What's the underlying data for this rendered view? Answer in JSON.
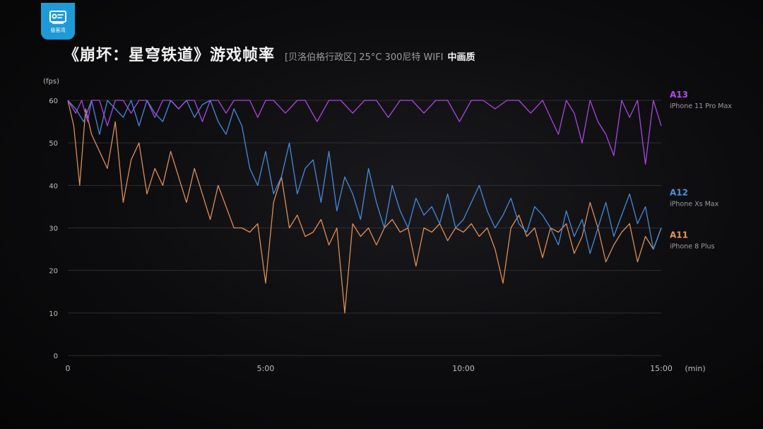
{
  "header": {
    "logo_text": "极客湾",
    "title": "《崩坏：星穹铁道》游戏帧率",
    "subtitle": "[贝洛伯格行政区] 25°C 300尼特 WIFI",
    "quality": "中画质"
  },
  "colors": {
    "a13": "#b04ae8",
    "a12": "#4a8fe0",
    "a11": "#e6935c",
    "grid": "#2e2e32",
    "axis_text": "#bdbdbd"
  },
  "chart_data": {
    "type": "line",
    "title": "《崩坏：星穹铁道》游戏帧率",
    "ylabel": "(fps)",
    "xlabel": "(min)",
    "ylim": [
      0,
      60
    ],
    "xlim": [
      0,
      15
    ],
    "yticks": [
      "0",
      "10",
      "20",
      "30",
      "40",
      "50",
      "60"
    ],
    "xticks": [
      {
        "value": 0,
        "label": "0"
      },
      {
        "value": 5,
        "label": "5:00"
      },
      {
        "value": 10,
        "label": "10:00"
      },
      {
        "value": 15,
        "label": "15:00"
      }
    ],
    "grid": true,
    "legend_position": "right",
    "series": [
      {
        "name": "A13",
        "device": "iPhone 11 Pro Max",
        "color": "#b04ae8",
        "x": [
          0,
          0.2,
          0.35,
          0.5,
          0.6,
          0.8,
          1.0,
          1.2,
          1.4,
          1.6,
          1.8,
          2.0,
          2.2,
          2.4,
          2.6,
          2.8,
          3.0,
          3.2,
          3.4,
          3.6,
          3.8,
          4.0,
          4.2,
          4.4,
          4.6,
          4.8,
          5.0,
          5.2,
          5.5,
          5.8,
          6.0,
          6.3,
          6.6,
          6.9,
          7.2,
          7.5,
          7.8,
          8.1,
          8.4,
          8.7,
          9.0,
          9.3,
          9.6,
          9.9,
          10.2,
          10.5,
          10.8,
          11.1,
          11.4,
          11.7,
          12.0,
          12.2,
          12.4,
          12.6,
          12.8,
          13.0,
          13.2,
          13.4,
          13.6,
          13.8,
          14.0,
          14.2,
          14.4,
          14.6,
          14.8,
          15.0
        ],
        "y": [
          60,
          57,
          60,
          55,
          60,
          60,
          54,
          60,
          60,
          57,
          60,
          60,
          56,
          60,
          60,
          58,
          60,
          60,
          55,
          60,
          60,
          57,
          60,
          60,
          60,
          56,
          60,
          60,
          57,
          60,
          60,
          55,
          60,
          60,
          57,
          60,
          60,
          56,
          60,
          60,
          57,
          60,
          60,
          55,
          60,
          60,
          58,
          60,
          60,
          57,
          60,
          56,
          52,
          60,
          57,
          50,
          60,
          55,
          52,
          47,
          60,
          56,
          60,
          45,
          60,
          54
        ]
      },
      {
        "name": "A12",
        "device": "iPhone Xs Max",
        "color": "#4a8fe0",
        "x": [
          0,
          0.2,
          0.4,
          0.6,
          0.8,
          1.0,
          1.2,
          1.4,
          1.6,
          1.8,
          2.0,
          2.2,
          2.4,
          2.6,
          2.8,
          3.0,
          3.2,
          3.4,
          3.6,
          3.8,
          4.0,
          4.2,
          4.4,
          4.6,
          4.8,
          5.0,
          5.2,
          5.4,
          5.6,
          5.8,
          6.0,
          6.2,
          6.4,
          6.6,
          6.8,
          7.0,
          7.2,
          7.4,
          7.6,
          7.8,
          8.0,
          8.2,
          8.4,
          8.6,
          8.8,
          9.0,
          9.2,
          9.4,
          9.6,
          9.8,
          10.0,
          10.2,
          10.4,
          10.6,
          10.8,
          11.0,
          11.2,
          11.4,
          11.6,
          11.8,
          12.0,
          12.2,
          12.4,
          12.6,
          12.8,
          13.0,
          13.2,
          13.4,
          13.6,
          13.8,
          14.0,
          14.2,
          14.4,
          14.6,
          14.8,
          15.0
        ],
        "y": [
          60,
          58,
          55,
          60,
          52,
          60,
          58,
          56,
          60,
          54,
          60,
          57,
          55,
          60,
          58,
          60,
          56,
          59,
          60,
          55,
          52,
          58,
          54,
          44,
          40,
          48,
          38,
          42,
          50,
          38,
          44,
          46,
          36,
          48,
          34,
          42,
          38,
          32,
          44,
          36,
          30,
          40,
          34,
          30,
          37,
          33,
          35,
          31,
          38,
          30,
          32,
          36,
          40,
          34,
          30,
          33,
          37,
          31,
          29,
          35,
          33,
          30,
          26,
          34,
          28,
          32,
          24,
          30,
          36,
          28,
          33,
          38,
          31,
          35,
          25,
          30
        ]
      },
      {
        "name": "A11",
        "device": "iPhone 8 Plus",
        "color": "#e6935c",
        "x": [
          0,
          0.15,
          0.3,
          0.45,
          0.6,
          0.8,
          1.0,
          1.2,
          1.4,
          1.6,
          1.8,
          2.0,
          2.2,
          2.4,
          2.6,
          2.8,
          3.0,
          3.2,
          3.4,
          3.6,
          3.8,
          4.0,
          4.2,
          4.4,
          4.6,
          4.8,
          5.0,
          5.2,
          5.4,
          5.6,
          5.8,
          6.0,
          6.2,
          6.4,
          6.6,
          6.8,
          7.0,
          7.2,
          7.4,
          7.6,
          7.8,
          8.0,
          8.2,
          8.4,
          8.6,
          8.8,
          9.0,
          9.2,
          9.4,
          9.6,
          9.8,
          10.0,
          10.2,
          10.4,
          10.6,
          10.8,
          11.0,
          11.2,
          11.4,
          11.6,
          11.8,
          12.0,
          12.2,
          12.4,
          12.6,
          12.8,
          13.0,
          13.2,
          13.4,
          13.6,
          13.8,
          14.0,
          14.2,
          14.4,
          14.6,
          14.8,
          15.0
        ],
        "y": [
          60,
          54,
          40,
          58,
          52,
          48,
          44,
          55,
          36,
          46,
          50,
          38,
          44,
          40,
          48,
          42,
          36,
          44,
          38,
          32,
          40,
          35,
          30,
          30,
          29,
          31,
          17,
          36,
          42,
          30,
          33,
          28,
          29,
          32,
          26,
          30,
          10,
          31,
          28,
          30,
          26,
          30,
          32,
          29,
          30,
          21,
          30,
          29,
          31,
          27,
          30,
          29,
          31,
          28,
          30,
          25,
          17,
          30,
          33,
          28,
          30,
          23,
          30,
          29,
          31,
          24,
          28,
          36,
          30,
          22,
          26,
          29,
          31,
          22,
          28,
          25,
          30
        ]
      }
    ]
  }
}
